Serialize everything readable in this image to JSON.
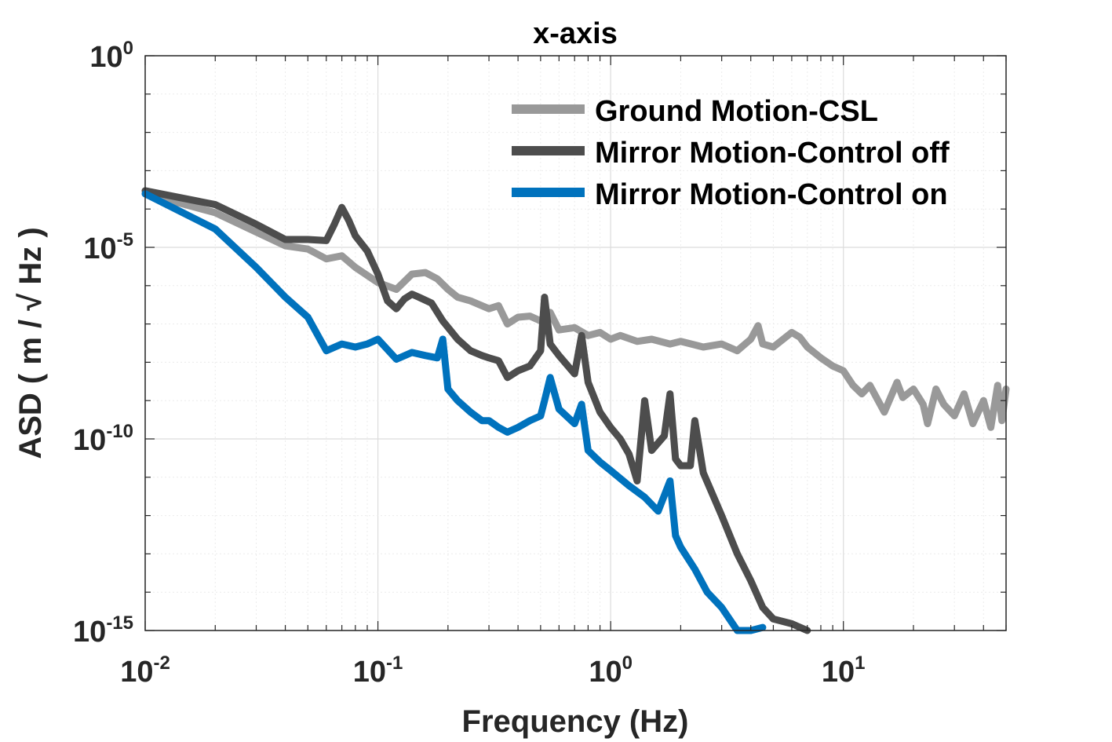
{
  "chart_data": {
    "type": "line",
    "title": "x-axis",
    "xlabel": "Frequency (Hz)",
    "ylabel": "ASD ( m / √ Hz )",
    "xscale": "log",
    "yscale": "log",
    "xlim": [
      0.01,
      50
    ],
    "ylim": [
      1e-15,
      1
    ],
    "grid": true,
    "legend_position": "top-right",
    "x_ticks": [
      {
        "value": 0.01,
        "base": "10",
        "exp": "-2"
      },
      {
        "value": 0.1,
        "base": "10",
        "exp": "-1"
      },
      {
        "value": 1,
        "base": "10",
        "exp": "0"
      },
      {
        "value": 10,
        "base": "10",
        "exp": "1"
      }
    ],
    "y_ticks": [
      {
        "value": 1,
        "base": "10",
        "exp": "0"
      },
      {
        "value": 1e-05,
        "base": "10",
        "exp": "-5"
      },
      {
        "value": 1e-10,
        "base": "10",
        "exp": "-10"
      },
      {
        "value": 1e-15,
        "base": "10",
        "exp": "-15"
      }
    ],
    "series": [
      {
        "name": "Ground Motion-CSL",
        "color": "#999999",
        "points": [
          [
            0.01,
            0.00025
          ],
          [
            0.02,
            8e-05
          ],
          [
            0.03,
            2.5e-05
          ],
          [
            0.04,
            1.1e-05
          ],
          [
            0.05,
            9e-06
          ],
          [
            0.06,
            5e-06
          ],
          [
            0.07,
            6e-06
          ],
          [
            0.08,
            3e-06
          ],
          [
            0.1,
            1.2e-06
          ],
          [
            0.12,
            8e-07
          ],
          [
            0.14,
            2e-06
          ],
          [
            0.16,
            2.2e-06
          ],
          [
            0.18,
            1.5e-06
          ],
          [
            0.2,
            8e-07
          ],
          [
            0.22,
            5e-07
          ],
          [
            0.25,
            4e-07
          ],
          [
            0.3,
            2.5e-07
          ],
          [
            0.33,
            3e-07
          ],
          [
            0.36,
            1e-07
          ],
          [
            0.4,
            1.5e-07
          ],
          [
            0.45,
            1.6e-07
          ],
          [
            0.5,
            1.2e-07
          ],
          [
            0.55,
            2e-07
          ],
          [
            0.6,
            7e-08
          ],
          [
            0.7,
            8e-08
          ],
          [
            0.8,
            5e-08
          ],
          [
            0.9,
            6e-08
          ],
          [
            1.0,
            4e-08
          ],
          [
            1.1,
            5e-08
          ],
          [
            1.3,
            3.5e-08
          ],
          [
            1.5,
            4e-08
          ],
          [
            1.8,
            3e-08
          ],
          [
            2.0,
            3.5e-08
          ],
          [
            2.5,
            2.5e-08
          ],
          [
            3.0,
            3e-08
          ],
          [
            3.5,
            2e-08
          ],
          [
            4.0,
            4e-08
          ],
          [
            4.3,
            9e-08
          ],
          [
            4.5,
            3e-08
          ],
          [
            5.0,
            2.5e-08
          ],
          [
            6.0,
            6e-08
          ],
          [
            6.5,
            4.5e-08
          ],
          [
            7.0,
            2.5e-08
          ],
          [
            8.0,
            1.3e-08
          ],
          [
            9.0,
            8e-09
          ],
          [
            10,
            6e-09
          ],
          [
            11,
            2.5e-09
          ],
          [
            12,
            1.5e-09
          ],
          [
            13,
            2.5e-09
          ],
          [
            15,
            5e-10
          ],
          [
            17,
            3e-09
          ],
          [
            18,
            1.2e-09
          ],
          [
            20,
            2e-09
          ],
          [
            22,
            8e-10
          ],
          [
            23,
            2.5e-10
          ],
          [
            25,
            2e-09
          ],
          [
            27,
            8e-10
          ],
          [
            30,
            4e-10
          ],
          [
            33,
            1.5e-09
          ],
          [
            36,
            2.5e-10
          ],
          [
            40,
            1e-09
          ],
          [
            43,
            2e-10
          ],
          [
            46,
            2.5e-09
          ],
          [
            48,
            3e-10
          ],
          [
            50,
            2e-09
          ]
        ]
      },
      {
        "name": "Mirror Motion-Control off",
        "color": "#4d4d4d",
        "points": [
          [
            0.01,
            0.0003
          ],
          [
            0.02,
            0.00013
          ],
          [
            0.03,
            4e-05
          ],
          [
            0.04,
            1.6e-05
          ],
          [
            0.05,
            1.6e-05
          ],
          [
            0.06,
            1.5e-05
          ],
          [
            0.065,
            4e-05
          ],
          [
            0.07,
            0.00011
          ],
          [
            0.075,
            5e-05
          ],
          [
            0.08,
            2e-05
          ],
          [
            0.09,
            8e-06
          ],
          [
            0.1,
            2e-06
          ],
          [
            0.11,
            4e-07
          ],
          [
            0.12,
            2.5e-07
          ],
          [
            0.13,
            4.5e-07
          ],
          [
            0.14,
            6e-07
          ],
          [
            0.15,
            5e-07
          ],
          [
            0.17,
            3.5e-07
          ],
          [
            0.19,
            1.2e-07
          ],
          [
            0.22,
            4e-08
          ],
          [
            0.25,
            2e-08
          ],
          [
            0.28,
            1.5e-08
          ],
          [
            0.3,
            1.3e-08
          ],
          [
            0.33,
            1.1e-08
          ],
          [
            0.36,
            4e-09
          ],
          [
            0.4,
            6e-09
          ],
          [
            0.45,
            8e-09
          ],
          [
            0.5,
            2e-08
          ],
          [
            0.52,
            5e-07
          ],
          [
            0.55,
            3e-08
          ],
          [
            0.6,
            1.5e-08
          ],
          [
            0.7,
            5e-09
          ],
          [
            0.75,
            5e-08
          ],
          [
            0.8,
            3e-09
          ],
          [
            0.9,
            5e-10
          ],
          [
            1.0,
            2e-10
          ],
          [
            1.1,
            1e-10
          ],
          [
            1.2,
            4e-11
          ],
          [
            1.3,
            8e-12
          ],
          [
            1.4,
            1e-09
          ],
          [
            1.5,
            5e-11
          ],
          [
            1.7,
            1.2e-10
          ],
          [
            1.8,
            1.5e-09
          ],
          [
            1.9,
            3e-11
          ],
          [
            2.0,
            2e-11
          ],
          [
            2.2,
            2e-11
          ],
          [
            2.3,
            3e-10
          ],
          [
            2.5,
            1.3e-11
          ],
          [
            3.0,
            1e-12
          ],
          [
            3.5,
            1e-13
          ],
          [
            4.0,
            2e-14
          ],
          [
            4.5,
            4e-15
          ],
          [
            5.0,
            2e-15
          ],
          [
            6.0,
            1.5e-15
          ],
          [
            7.0,
            1e-15
          ]
        ]
      },
      {
        "name": "Mirror Motion-Control on",
        "color": "#0072bd",
        "points": [
          [
            0.01,
            0.00025
          ],
          [
            0.02,
            3e-05
          ],
          [
            0.03,
            3e-06
          ],
          [
            0.04,
            5e-07
          ],
          [
            0.05,
            1.5e-07
          ],
          [
            0.06,
            2e-08
          ],
          [
            0.07,
            3e-08
          ],
          [
            0.08,
            2.5e-08
          ],
          [
            0.09,
            3e-08
          ],
          [
            0.1,
            4e-08
          ],
          [
            0.12,
            1.2e-08
          ],
          [
            0.14,
            1.8e-08
          ],
          [
            0.16,
            1.5e-08
          ],
          [
            0.18,
            1.3e-08
          ],
          [
            0.19,
            4e-08
          ],
          [
            0.2,
            2e-09
          ],
          [
            0.22,
            1e-09
          ],
          [
            0.25,
            5e-10
          ],
          [
            0.28,
            3e-10
          ],
          [
            0.3,
            3e-10
          ],
          [
            0.33,
            2e-10
          ],
          [
            0.36,
            1.5e-10
          ],
          [
            0.4,
            2e-10
          ],
          [
            0.45,
            3e-10
          ],
          [
            0.5,
            4e-10
          ],
          [
            0.52,
            1e-09
          ],
          [
            0.55,
            4e-09
          ],
          [
            0.6,
            6e-10
          ],
          [
            0.7,
            2.5e-10
          ],
          [
            0.75,
            8e-10
          ],
          [
            0.8,
            5e-11
          ],
          [
            0.9,
            2.5e-11
          ],
          [
            1.0,
            1.5e-11
          ],
          [
            1.2,
            6e-12
          ],
          [
            1.4,
            3e-12
          ],
          [
            1.6,
            1.3e-12
          ],
          [
            1.8,
            8e-12
          ],
          [
            1.9,
            3e-13
          ],
          [
            2.0,
            1.5e-13
          ],
          [
            2.3,
            4e-14
          ],
          [
            2.6,
            1e-14
          ],
          [
            3.0,
            4e-15
          ],
          [
            3.5,
            1e-15
          ],
          [
            4.0,
            8e-16
          ],
          [
            4.5,
            1.2e-15
          ]
        ]
      }
    ]
  }
}
